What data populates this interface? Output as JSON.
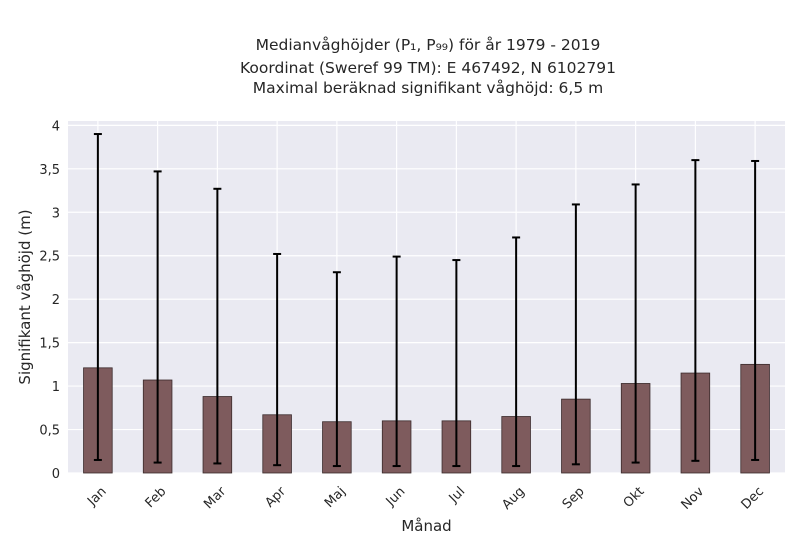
{
  "chart_data": {
    "type": "bar",
    "title_lines": [
      "Medianvåghöjder (P₁, P₉₉) för år 1979 - 2019",
      "Koordinat (Sweref 99 TM): E 467492, N 6102791",
      "Maximal beräknad signifikant våghöjd: 6,5 m"
    ],
    "xlabel": "Månad",
    "ylabel": "Signifikant våghöjd (m)",
    "categories": [
      "Jan",
      "Feb",
      "Mar",
      "Apr",
      "Maj",
      "Jun",
      "Jul",
      "Aug",
      "Sep",
      "Okt",
      "Nov",
      "Dec"
    ],
    "values": [
      1.21,
      1.07,
      0.88,
      0.67,
      0.59,
      0.6,
      0.6,
      0.65,
      0.85,
      1.03,
      1.15,
      1.25
    ],
    "p1": [
      0.15,
      0.12,
      0.11,
      0.09,
      0.08,
      0.08,
      0.08,
      0.08,
      0.1,
      0.12,
      0.14,
      0.15
    ],
    "p99": [
      3.9,
      3.47,
      3.27,
      2.52,
      2.31,
      2.49,
      2.45,
      2.71,
      3.09,
      3.32,
      3.6,
      3.59
    ],
    "ylim": [
      0,
      4.05
    ],
    "yticks": [
      0,
      0.5,
      1,
      1.5,
      2,
      2.5,
      3,
      3.5,
      4
    ],
    "ytick_labels": [
      "0",
      "0,5",
      "1",
      "1,5",
      "2",
      "2,5",
      "3",
      "3,5",
      "4"
    ],
    "grid": true,
    "colors": {
      "bar": "#7e5b5d",
      "bar_edge": "#3a2a2b",
      "errorbar": "#000000",
      "plot_bg": "#eaeaf2",
      "grid": "#ffffff",
      "text": "#262626"
    }
  }
}
